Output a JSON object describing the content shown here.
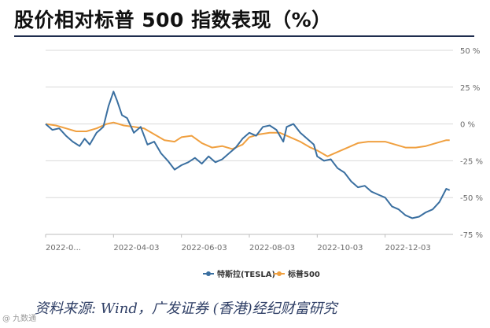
{
  "header": {
    "title": "股价相对标普 500 指数表现（%）"
  },
  "footer": {
    "source": "资料来源: Wind，广发证券 (香港)经纪财富研究",
    "watermark": "@ 九数通"
  },
  "colors": {
    "tesla": "#3a6fa0",
    "sp500": "#f0a040",
    "grid": "#d9d9d9",
    "axis_text": "#6a6a6a",
    "title_rule": "#1f2d4e"
  },
  "chart_data": {
    "type": "line",
    "title": "股价相对标普 500 指数表现（%）",
    "xlabel": "",
    "ylabel": "",
    "ylim": [
      -75,
      50
    ],
    "yticks": [
      50,
      25,
      0,
      -25,
      -50,
      -75
    ],
    "ytick_labels": [
      "50 %",
      "25 %",
      "0 %",
      "-25 %",
      "-50 %",
      "-75 %"
    ],
    "xlim": [
      0,
      12
    ],
    "xticks": [
      {
        "x": 0.0,
        "label": "2022-0..."
      },
      {
        "x": 2.0,
        "label": "2022-04-03"
      },
      {
        "x": 4.0,
        "label": "2022-06-03"
      },
      {
        "x": 6.0,
        "label": "2022-08-03"
      },
      {
        "x": 8.0,
        "label": "2022-10-03"
      },
      {
        "x": 10.0,
        "label": "2022-12-03"
      }
    ],
    "grid": "horizontal",
    "legend_position": "bottom-center",
    "series": [
      {
        "name": "特斯拉(TESLA)",
        "color": "#3a6fa0",
        "x": [
          0.0,
          0.2,
          0.4,
          0.6,
          0.8,
          1.0,
          1.15,
          1.3,
          1.5,
          1.7,
          1.85,
          2.0,
          2.1,
          2.25,
          2.4,
          2.6,
          2.8,
          3.0,
          3.2,
          3.4,
          3.6,
          3.8,
          4.0,
          4.2,
          4.4,
          4.6,
          4.8,
          5.0,
          5.2,
          5.4,
          5.6,
          5.8,
          6.0,
          6.2,
          6.4,
          6.6,
          6.8,
          7.0,
          7.1,
          7.3,
          7.5,
          7.7,
          7.9,
          8.0,
          8.2,
          8.4,
          8.6,
          8.8,
          9.0,
          9.2,
          9.4,
          9.6,
          9.8,
          10.0,
          10.2,
          10.4,
          10.6,
          10.8,
          11.0,
          11.2,
          11.4,
          11.6,
          11.8,
          11.9
        ],
        "values": [
          0,
          -4,
          -3,
          -8,
          -12,
          -15,
          -10,
          -14,
          -6,
          -2,
          12,
          22,
          16,
          6,
          4,
          -6,
          -2,
          -14,
          -12,
          -20,
          -25,
          -31,
          -28,
          -26,
          -23,
          -27,
          -22,
          -26,
          -24,
          -20,
          -16,
          -10,
          -6,
          -8,
          -2,
          -1,
          -4,
          -12,
          -2,
          0,
          -6,
          -10,
          -14,
          -22,
          -25,
          -24,
          -30,
          -33,
          -39,
          -43,
          -42,
          -46,
          -48,
          -50,
          -56,
          -58,
          -62,
          -64,
          -63,
          -60,
          -58,
          -53,
          -44,
          -45
        ]
      },
      {
        "name": "标普500",
        "color": "#f0a040",
        "x": [
          0.0,
          0.3,
          0.6,
          0.9,
          1.2,
          1.5,
          1.8,
          2.0,
          2.3,
          2.6,
          2.9,
          3.2,
          3.5,
          3.8,
          4.0,
          4.3,
          4.6,
          4.9,
          5.2,
          5.5,
          5.8,
          6.0,
          6.3,
          6.6,
          6.9,
          7.2,
          7.5,
          7.8,
          8.0,
          8.3,
          8.6,
          8.9,
          9.2,
          9.5,
          9.8,
          10.0,
          10.3,
          10.6,
          10.9,
          11.2,
          11.5,
          11.8,
          11.9
        ],
        "values": [
          0,
          -1,
          -3,
          -5,
          -5,
          -3,
          0,
          1,
          -1,
          -2,
          -3,
          -7,
          -11,
          -12,
          -9,
          -8,
          -13,
          -16,
          -15,
          -17,
          -14,
          -9,
          -7,
          -6,
          -6,
          -9,
          -12,
          -16,
          -18,
          -22,
          -19,
          -16,
          -13,
          -12,
          -12,
          -12,
          -14,
          -16,
          -16,
          -15,
          -13,
          -11,
          -11
        ]
      }
    ]
  }
}
